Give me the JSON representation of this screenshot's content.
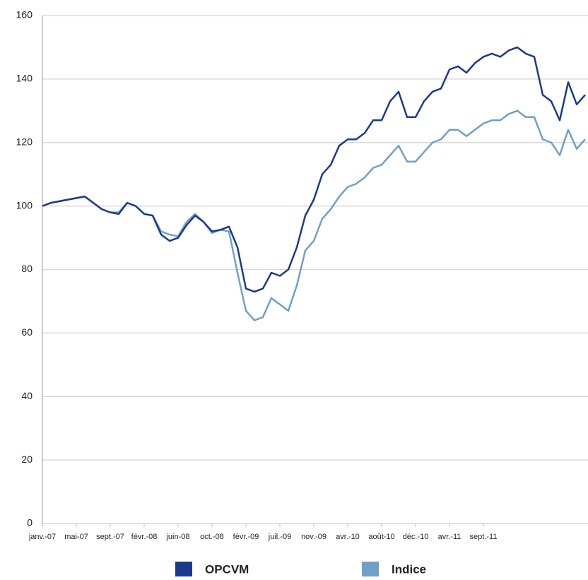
{
  "chart_data": {
    "type": "line",
    "categories": [
      "janv.-07",
      null,
      null,
      null,
      "mai-07",
      null,
      null,
      null,
      "sept.-07",
      null,
      null,
      null,
      "févr.-08",
      null,
      null,
      null,
      "juin-08",
      null,
      null,
      null,
      "oct.-08",
      null,
      null,
      null,
      "févr.-09",
      null,
      null,
      null,
      "juil.-09",
      null,
      null,
      null,
      "nov.-09",
      null,
      null,
      null,
      "avr.-10",
      null,
      null,
      null,
      "août-10",
      null,
      null,
      null,
      "déc.-10",
      null,
      null,
      null,
      "avr.-11",
      null,
      null,
      null,
      "sept.-11",
      null,
      null,
      null,
      null,
      null,
      null,
      null,
      null,
      null,
      null,
      null,
      null
    ],
    "series": [
      {
        "name": "OPCVM",
        "color": "#1a3a8c",
        "values": [
          100,
          101,
          101.5,
          102,
          102.5,
          103,
          101,
          99,
          98,
          97.5,
          101,
          100,
          97.5,
          97,
          91,
          89,
          90,
          94,
          97,
          95,
          92,
          92.5,
          93.5,
          87,
          74,
          73,
          74,
          79,
          78,
          80,
          87,
          97,
          102,
          110,
          113,
          119,
          121,
          121,
          123,
          127,
          127,
          133,
          136,
          128,
          128,
          133,
          136,
          137,
          143,
          144,
          142,
          145,
          147,
          148,
          147,
          149,
          150,
          148,
          147,
          135,
          133,
          127,
          139,
          132,
          135
        ]
      },
      {
        "name": "Indice",
        "color": "#6fa0c8",
        "values": [
          100,
          101,
          101.5,
          102,
          102.5,
          103,
          101,
          99,
          98,
          98,
          101,
          100,
          97.5,
          97,
          92,
          91,
          90.5,
          95,
          97.5,
          95,
          91.5,
          92.5,
          92,
          79,
          67,
          64,
          65,
          71,
          69,
          67,
          75,
          86,
          89,
          96,
          99,
          103,
          106,
          107,
          109,
          112,
          113,
          116,
          119,
          114,
          114,
          117,
          120,
          121,
          124,
          124,
          122,
          124,
          126,
          127,
          127,
          129,
          130,
          128,
          128,
          121,
          120,
          116,
          124,
          118,
          121
        ]
      }
    ],
    "ylim": [
      0,
      160
    ],
    "yticks": [
      0,
      20,
      40,
      60,
      80,
      100,
      120,
      140,
      160
    ],
    "grid": true
  }
}
